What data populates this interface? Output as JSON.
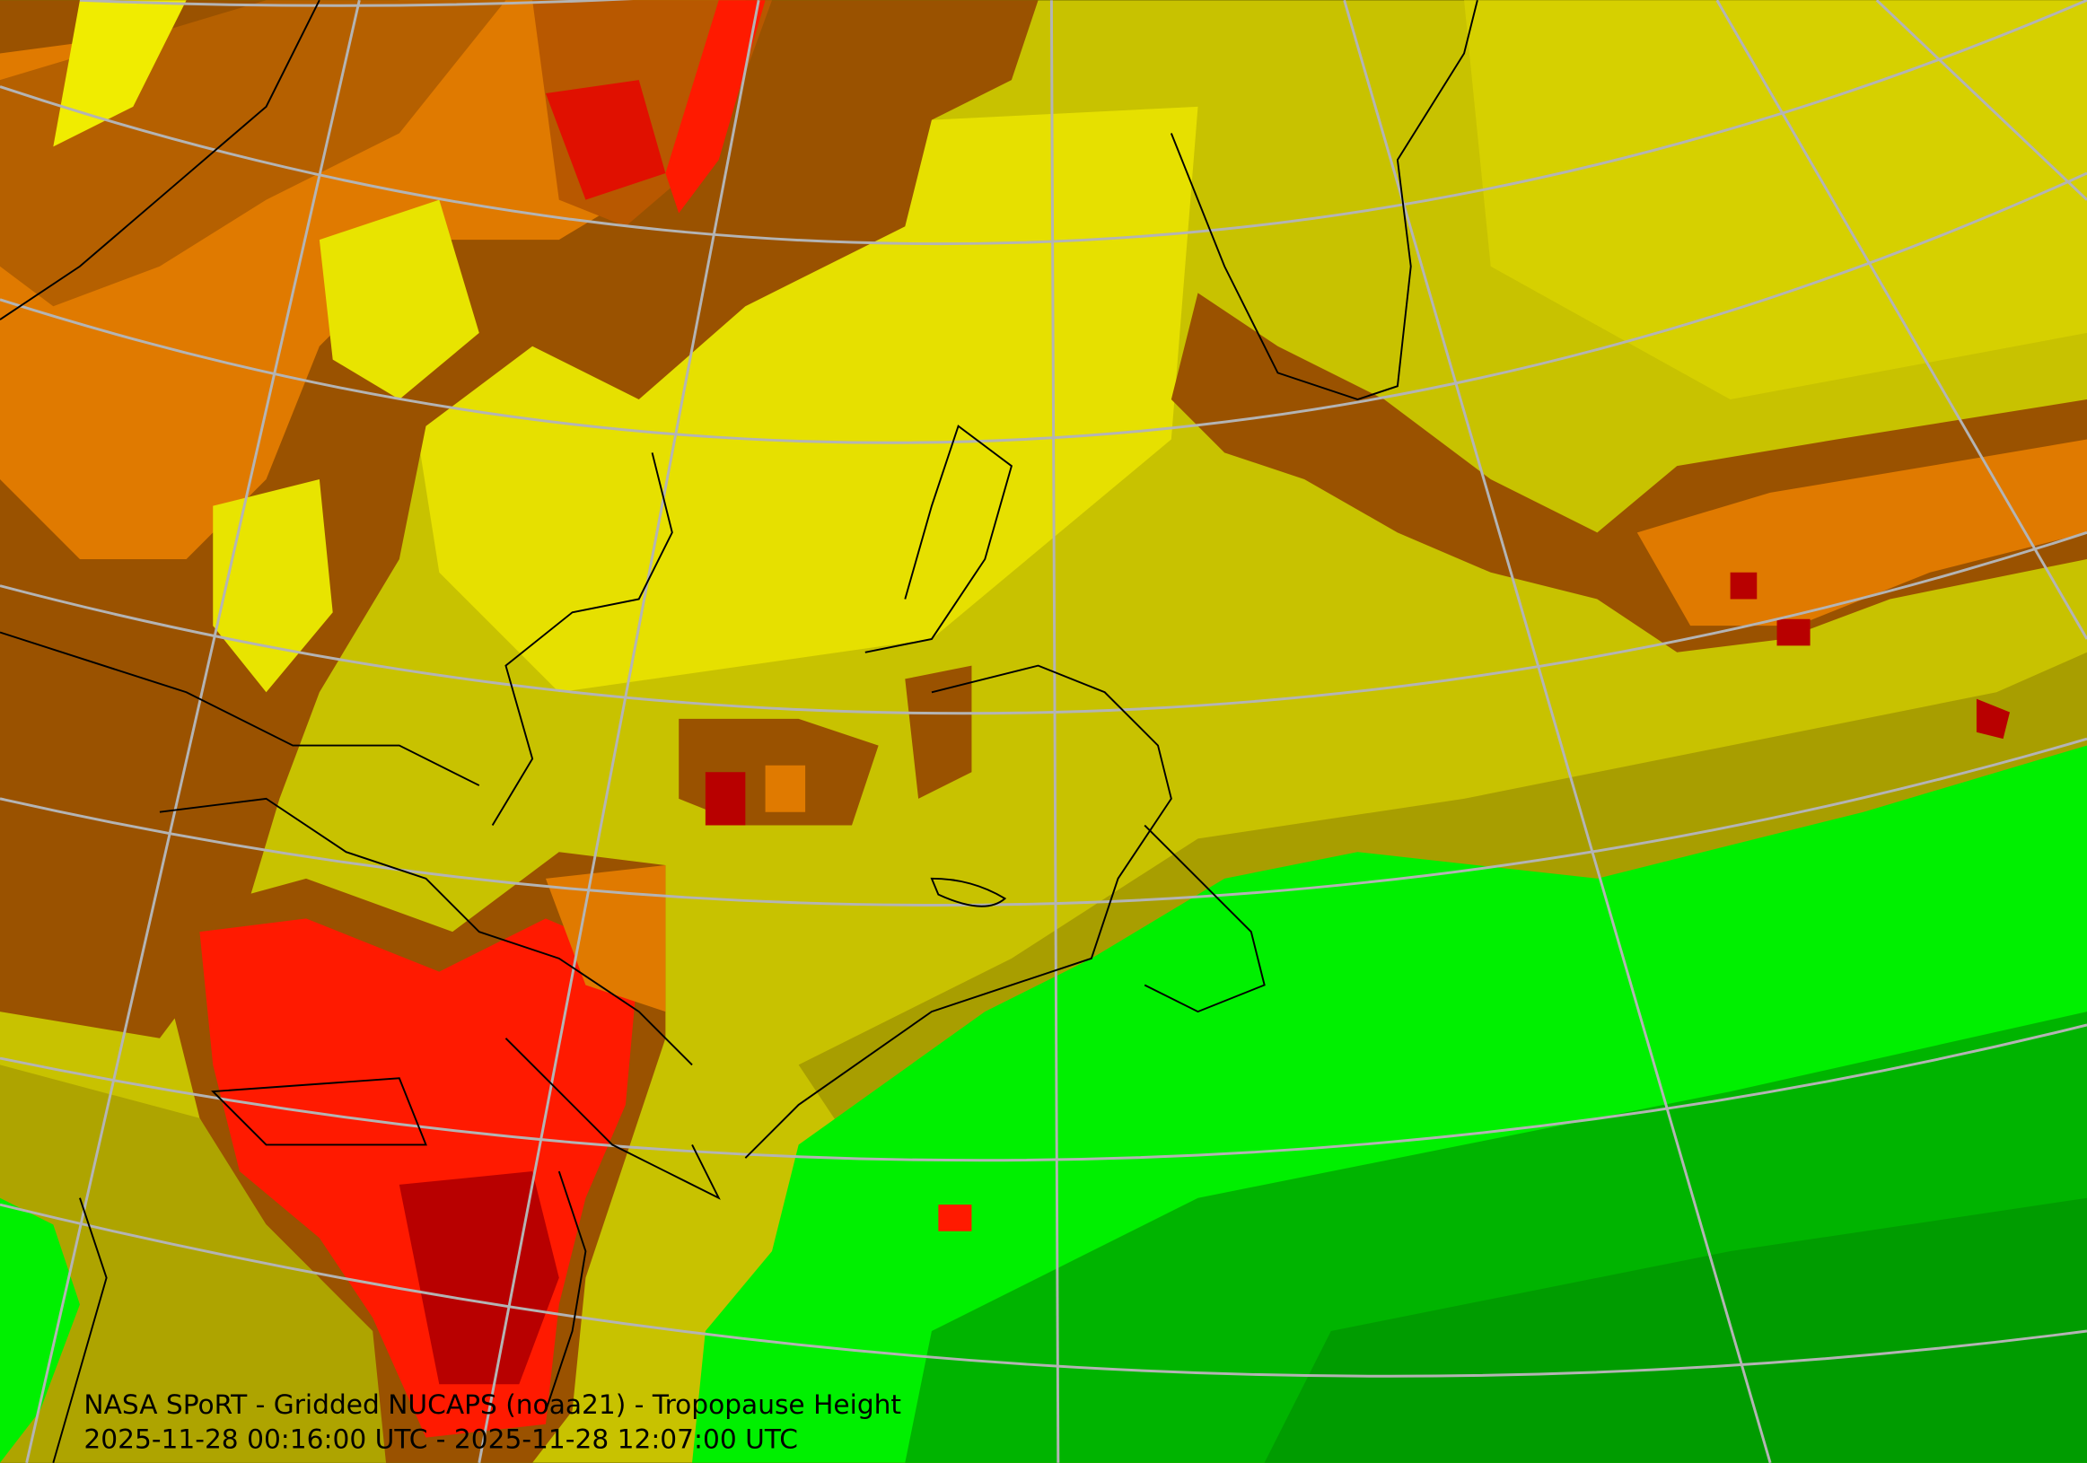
{
  "caption": {
    "title": "NASA SPoRT - Gridded NUCAPS (noaa21) - Tropopause Height",
    "time_range": "2025-11-28 00:16:00 UTC - 2025-11-28 12:07:00 UTC"
  }
}
